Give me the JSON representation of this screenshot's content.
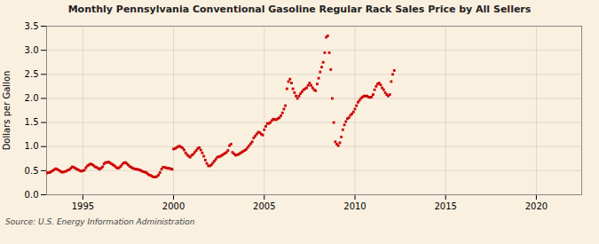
{
  "chart_data": {
    "type": "scatter",
    "title": "Monthly Pennsylvania Conventional Gasoline Regular Rack Sales Price by All Sellers",
    "ylabel": "Dollars per Gallon",
    "source": "Source: U.S. Energy Information Administration",
    "color": "#cc0000",
    "marker": "square",
    "grid": true,
    "xlim": [
      1993.0,
      2022.5
    ],
    "ylim": [
      0.0,
      3.5
    ],
    "xticks": [
      1995,
      2000,
      2005,
      2010,
      2015,
      2020
    ],
    "yticks": [
      {
        "value": 0.0,
        "label": "0.0"
      },
      0.5,
      {
        "value": 1.0,
        "label": "1.0"
      },
      1.5,
      {
        "value": 2.0,
        "label": "2.0"
      },
      2.5,
      {
        "value": 3.0,
        "label": "3.0"
      },
      3.5
    ],
    "x": [
      1993.0,
      1993.083,
      1993.167,
      1993.25,
      1993.333,
      1993.417,
      1993.5,
      1993.583,
      1993.667,
      1993.75,
      1993.833,
      1993.917,
      1994.0,
      1994.083,
      1994.167,
      1994.25,
      1994.333,
      1994.417,
      1994.5,
      1994.583,
      1994.667,
      1994.75,
      1994.833,
      1994.917,
      1995.0,
      1995.083,
      1995.167,
      1995.25,
      1995.333,
      1995.417,
      1995.5,
      1995.583,
      1995.667,
      1995.75,
      1995.833,
      1995.917,
      1996.0,
      1996.083,
      1996.167,
      1996.25,
      1996.333,
      1996.417,
      1996.5,
      1996.583,
      1996.667,
      1996.75,
      1996.833,
      1996.917,
      1997.0,
      1997.083,
      1997.167,
      1997.25,
      1997.333,
      1997.417,
      1997.5,
      1997.583,
      1997.667,
      1997.75,
      1997.833,
      1997.917,
      1998.0,
      1998.083,
      1998.167,
      1998.25,
      1998.333,
      1998.417,
      1998.5,
      1998.583,
      1998.667,
      1998.75,
      1998.833,
      1998.917,
      1999.0,
      1999.083,
      1999.167,
      1999.25,
      1999.333,
      1999.417,
      1999.5,
      1999.583,
      1999.667,
      1999.75,
      1999.833,
      1999.917,
      2000.0,
      2000.083,
      2000.167,
      2000.25,
      2000.333,
      2000.417,
      2000.5,
      2000.583,
      2000.667,
      2000.75,
      2000.833,
      2000.917,
      2001.0,
      2001.083,
      2001.167,
      2001.25,
      2001.333,
      2001.417,
      2001.5,
      2001.583,
      2001.667,
      2001.75,
      2001.833,
      2001.917,
      2002.0,
      2002.083,
      2002.167,
      2002.25,
      2002.333,
      2002.417,
      2002.5,
      2002.583,
      2002.667,
      2002.75,
      2002.833,
      2002.917,
      2003.0,
      2003.083,
      2003.167,
      2003.25,
      2003.333,
      2003.417,
      2003.5,
      2003.583,
      2003.667,
      2003.75,
      2003.833,
      2003.917,
      2004.0,
      2004.083,
      2004.167,
      2004.25,
      2004.333,
      2004.417,
      2004.5,
      2004.583,
      2004.667,
      2004.75,
      2004.833,
      2004.917,
      2005.0,
      2005.083,
      2005.167,
      2005.25,
      2005.333,
      2005.417,
      2005.5,
      2005.583,
      2005.667,
      2005.75,
      2005.833,
      2005.917,
      2006.0,
      2006.083,
      2006.167,
      2006.25,
      2006.333,
      2006.417,
      2006.5,
      2006.583,
      2006.667,
      2006.75,
      2006.833,
      2006.917,
      2007.0,
      2007.083,
      2007.167,
      2007.25,
      2007.333,
      2007.417,
      2007.5,
      2007.583,
      2007.667,
      2007.75,
      2007.833,
      2007.917,
      2008.0,
      2008.083,
      2008.167,
      2008.25,
      2008.333,
      2008.417,
      2008.5,
      2008.583,
      2008.667,
      2008.75,
      2008.833,
      2008.917,
      2009.0,
      2009.083,
      2009.167,
      2009.25,
      2009.333,
      2009.417,
      2009.5,
      2009.583,
      2009.667,
      2009.75,
      2009.833,
      2009.917,
      2010.0,
      2010.083,
      2010.167,
      2010.25,
      2010.333,
      2010.417,
      2010.5,
      2010.583,
      2010.667,
      2010.75,
      2010.833,
      2010.917,
      2011.0,
      2011.083,
      2011.167,
      2011.25,
      2011.333,
      2011.417,
      2011.5,
      2011.583,
      2011.667,
      2011.75,
      2011.833,
      2011.917,
      2012.0,
      2012.083,
      2012.167
    ],
    "values": [
      0.45,
      0.46,
      0.46,
      0.48,
      0.5,
      0.52,
      0.54,
      0.53,
      0.51,
      0.49,
      0.47,
      0.47,
      0.48,
      0.49,
      0.51,
      0.52,
      0.55,
      0.58,
      0.57,
      0.55,
      0.53,
      0.52,
      0.5,
      0.49,
      0.5,
      0.51,
      0.56,
      0.6,
      0.62,
      0.64,
      0.63,
      0.61,
      0.58,
      0.57,
      0.55,
      0.53,
      0.55,
      0.58,
      0.64,
      0.67,
      0.67,
      0.68,
      0.66,
      0.64,
      0.62,
      0.6,
      0.57,
      0.55,
      0.56,
      0.59,
      0.63,
      0.66,
      0.67,
      0.65,
      0.62,
      0.59,
      0.57,
      0.55,
      0.54,
      0.53,
      0.53,
      0.52,
      0.51,
      0.49,
      0.48,
      0.47,
      0.46,
      0.43,
      0.41,
      0.4,
      0.38,
      0.37,
      0.37,
      0.38,
      0.41,
      0.46,
      0.53,
      0.57,
      0.57,
      0.56,
      0.55,
      0.55,
      0.54,
      0.53,
      0.95,
      0.96,
      0.98,
      1.0,
      1.01,
      0.99,
      0.97,
      0.93,
      0.87,
      0.83,
      0.8,
      0.78,
      0.82,
      0.84,
      0.88,
      0.92,
      0.96,
      0.98,
      0.93,
      0.87,
      0.8,
      0.72,
      0.65,
      0.6,
      0.6,
      0.62,
      0.66,
      0.7,
      0.74,
      0.78,
      0.79,
      0.8,
      0.82,
      0.84,
      0.86,
      0.88,
      0.92,
      1.02,
      1.05,
      0.88,
      0.85,
      0.82,
      0.83,
      0.84,
      0.86,
      0.88,
      0.9,
      0.92,
      0.94,
      0.98,
      1.02,
      1.06,
      1.1,
      1.18,
      1.22,
      1.26,
      1.3,
      1.29,
      1.26,
      1.24,
      1.35,
      1.42,
      1.48,
      1.48,
      1.5,
      1.54,
      1.57,
      1.56,
      1.56,
      1.58,
      1.6,
      1.64,
      1.7,
      1.78,
      1.85,
      2.2,
      2.35,
      2.4,
      2.32,
      2.2,
      2.12,
      2.05,
      2.0,
      2.05,
      2.1,
      2.14,
      2.18,
      2.2,
      2.22,
      2.27,
      2.32,
      2.27,
      2.22,
      2.18,
      2.16,
      2.3,
      2.42,
      2.55,
      2.65,
      2.75,
      2.95,
      3.27,
      3.3,
      2.95,
      2.6,
      2.0,
      1.5,
      1.1,
      1.05,
      1.02,
      1.08,
      1.2,
      1.35,
      1.45,
      1.52,
      1.58,
      1.6,
      1.65,
      1.68,
      1.72,
      1.78,
      1.85,
      1.92,
      1.96,
      2.0,
      2.03,
      2.05,
      2.05,
      2.05,
      2.03,
      2.02,
      2.03,
      2.08,
      2.18,
      2.25,
      2.3,
      2.32,
      2.28,
      2.22,
      2.18,
      2.12,
      2.08,
      2.05,
      2.08,
      2.35,
      2.5,
      2.58
    ]
  }
}
